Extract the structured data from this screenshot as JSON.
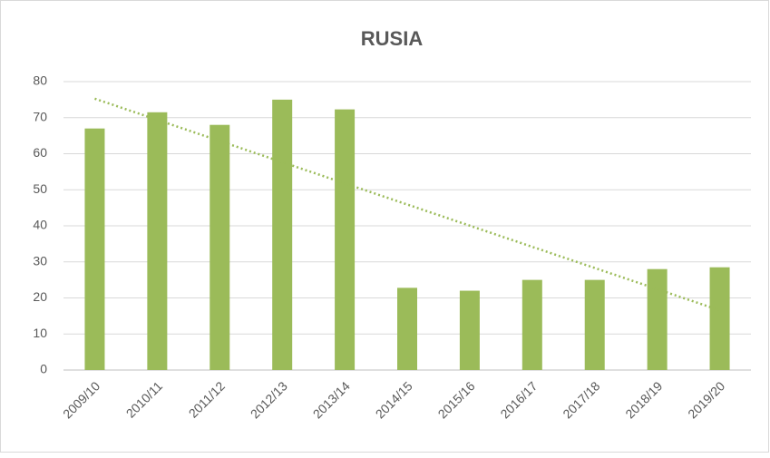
{
  "chart_data": {
    "type": "bar",
    "title": "RUSIA",
    "categories": [
      "2009/10",
      "2010/11",
      "2011/12",
      "2012/13",
      "2013/14",
      "2014/15",
      "2015/16",
      "2016/17",
      "2017/18",
      "2018/19",
      "2019/20"
    ],
    "values": [
      67,
      71.5,
      68,
      75,
      72.3,
      22.8,
      22,
      25,
      25,
      28,
      28.5
    ],
    "color": "#9bbb59",
    "trendline": "linear",
    "ylim": [
      0,
      80
    ],
    "yticks": [
      0,
      10,
      20,
      30,
      40,
      50,
      60,
      70,
      80
    ],
    "grid": true
  }
}
